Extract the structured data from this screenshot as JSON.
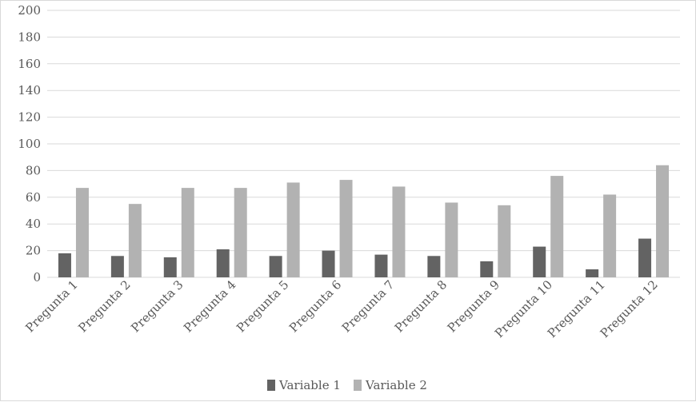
{
  "chart_data": {
    "type": "bar",
    "categories": [
      "Pregunta 1",
      "Pregunta 2",
      "Pregunta 3",
      "Pregunta 4",
      "Pregunta 5",
      "Pregunta 6",
      "Pregunta 7",
      "Pregunta 8",
      "Pregunta 9",
      "Pregunta 10",
      "Pregunta 11",
      "Pregunta 12"
    ],
    "series": [
      {
        "name": "Variable 1",
        "color": "#636363",
        "values": [
          18,
          16,
          15,
          21,
          16,
          20,
          17,
          16,
          12,
          23,
          6,
          29
        ]
      },
      {
        "name": "Variable 2",
        "color": "#b2b2b2",
        "values": [
          67,
          55,
          67,
          67,
          71,
          73,
          68,
          56,
          54,
          76,
          62,
          84
        ]
      }
    ],
    "ylim": [
      0,
      200
    ],
    "yticks": [
      0,
      20,
      40,
      60,
      80,
      100,
      120,
      140,
      160,
      180,
      200
    ],
    "grid": true,
    "legend": "bottom",
    "gridline_color": "#d9d9d9"
  }
}
